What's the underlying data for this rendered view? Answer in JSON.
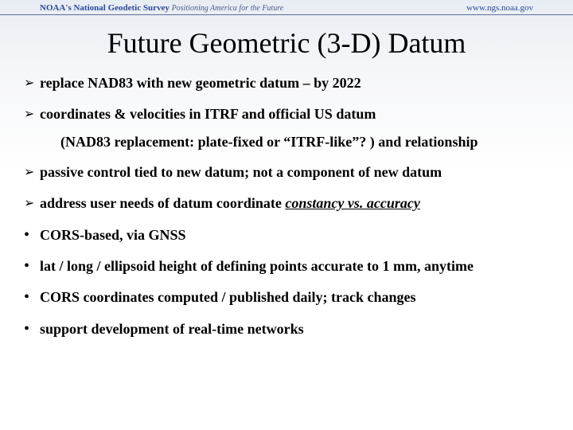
{
  "header": {
    "org_prefix": "NOAA's",
    "org_name": "National Geodetic Survey",
    "tagline": "Positioning America for the Future",
    "url": "www.ngs.noaa.gov"
  },
  "title": "Future Geometric (3-D) Datum",
  "bullets": [
    {
      "marker": "arrow",
      "text": "replace NAD83 with new geometric datum – by 2022"
    },
    {
      "marker": "arrow",
      "text": "coordinates & velocities in ITRF and official US datum"
    },
    {
      "marker": "sub",
      "text": "(NAD83 replacement: plate-fixed or “ITRF-like”? ) and relationship"
    },
    {
      "marker": "arrow",
      "text": "passive control tied to new datum; not a component of new datum"
    },
    {
      "marker": "arrow",
      "text_pre": "address user needs of datum coordinate ",
      "text_em": "constancy vs. accuracy"
    },
    {
      "marker": "circle",
      "text": "CORS-based, via GNSS"
    },
    {
      "marker": "circle",
      "text": "lat / long / ellipsoid height of defining points accurate to 1 mm, anytime"
    },
    {
      "marker": "circle",
      "text": "CORS coordinates computed / published daily; track changes"
    },
    {
      "marker": "circle",
      "text": "support development of real-time networks"
    }
  ],
  "glyphs": {
    "arrow": "➢",
    "circle": "•"
  },
  "colors": {
    "title": "#000000",
    "text": "#000000",
    "header_border": "#5a6d9a",
    "link": "#2a4a9a"
  }
}
